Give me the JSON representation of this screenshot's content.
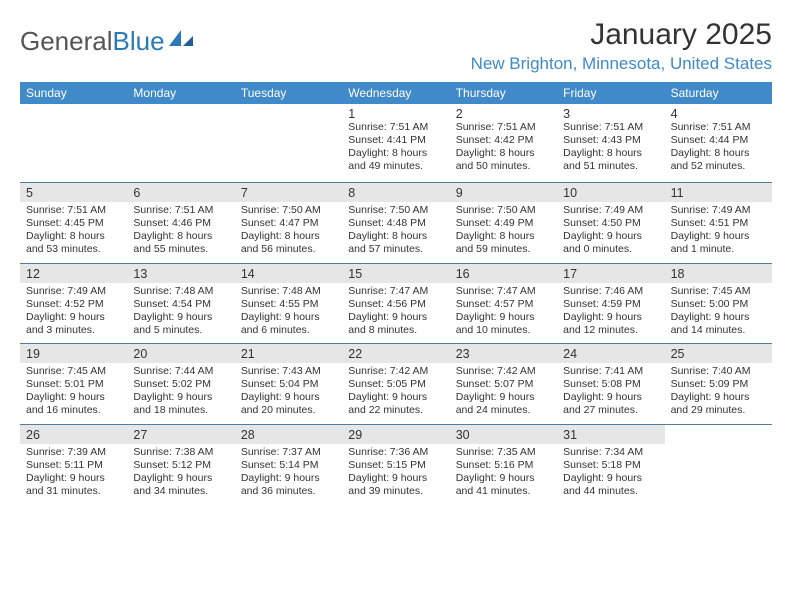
{
  "brand": {
    "word1": "General",
    "word2": "Blue"
  },
  "title": "January 2025",
  "location": "New Brighton, Minnesota, United States",
  "colors": {
    "header_bg": "#408aca",
    "header_text": "#ffffff",
    "shaded_bg": "#e6e6e6",
    "divider": "#4b7fa8",
    "location_color": "#408aca",
    "body_text": "#333333"
  },
  "dow": [
    "Sunday",
    "Monday",
    "Tuesday",
    "Wednesday",
    "Thursday",
    "Friday",
    "Saturday"
  ],
  "weeks": [
    [
      {},
      {},
      {},
      {
        "day": "1",
        "sunrise": "Sunrise: 7:51 AM",
        "sunset": "Sunset: 4:41 PM",
        "d1": "Daylight: 8 hours",
        "d2": "and 49 minutes."
      },
      {
        "day": "2",
        "sunrise": "Sunrise: 7:51 AM",
        "sunset": "Sunset: 4:42 PM",
        "d1": "Daylight: 8 hours",
        "d2": "and 50 minutes."
      },
      {
        "day": "3",
        "sunrise": "Sunrise: 7:51 AM",
        "sunset": "Sunset: 4:43 PM",
        "d1": "Daylight: 8 hours",
        "d2": "and 51 minutes."
      },
      {
        "day": "4",
        "sunrise": "Sunrise: 7:51 AM",
        "sunset": "Sunset: 4:44 PM",
        "d1": "Daylight: 8 hours",
        "d2": "and 52 minutes."
      }
    ],
    [
      {
        "day": "5",
        "sunrise": "Sunrise: 7:51 AM",
        "sunset": "Sunset: 4:45 PM",
        "d1": "Daylight: 8 hours",
        "d2": "and 53 minutes."
      },
      {
        "day": "6",
        "sunrise": "Sunrise: 7:51 AM",
        "sunset": "Sunset: 4:46 PM",
        "d1": "Daylight: 8 hours",
        "d2": "and 55 minutes."
      },
      {
        "day": "7",
        "sunrise": "Sunrise: 7:50 AM",
        "sunset": "Sunset: 4:47 PM",
        "d1": "Daylight: 8 hours",
        "d2": "and 56 minutes."
      },
      {
        "day": "8",
        "sunrise": "Sunrise: 7:50 AM",
        "sunset": "Sunset: 4:48 PM",
        "d1": "Daylight: 8 hours",
        "d2": "and 57 minutes."
      },
      {
        "day": "9",
        "sunrise": "Sunrise: 7:50 AM",
        "sunset": "Sunset: 4:49 PM",
        "d1": "Daylight: 8 hours",
        "d2": "and 59 minutes."
      },
      {
        "day": "10",
        "sunrise": "Sunrise: 7:49 AM",
        "sunset": "Sunset: 4:50 PM",
        "d1": "Daylight: 9 hours",
        "d2": "and 0 minutes."
      },
      {
        "day": "11",
        "sunrise": "Sunrise: 7:49 AM",
        "sunset": "Sunset: 4:51 PM",
        "d1": "Daylight: 9 hours",
        "d2": "and 1 minute."
      }
    ],
    [
      {
        "day": "12",
        "sunrise": "Sunrise: 7:49 AM",
        "sunset": "Sunset: 4:52 PM",
        "d1": "Daylight: 9 hours",
        "d2": "and 3 minutes."
      },
      {
        "day": "13",
        "sunrise": "Sunrise: 7:48 AM",
        "sunset": "Sunset: 4:54 PM",
        "d1": "Daylight: 9 hours",
        "d2": "and 5 minutes."
      },
      {
        "day": "14",
        "sunrise": "Sunrise: 7:48 AM",
        "sunset": "Sunset: 4:55 PM",
        "d1": "Daylight: 9 hours",
        "d2": "and 6 minutes."
      },
      {
        "day": "15",
        "sunrise": "Sunrise: 7:47 AM",
        "sunset": "Sunset: 4:56 PM",
        "d1": "Daylight: 9 hours",
        "d2": "and 8 minutes."
      },
      {
        "day": "16",
        "sunrise": "Sunrise: 7:47 AM",
        "sunset": "Sunset: 4:57 PM",
        "d1": "Daylight: 9 hours",
        "d2": "and 10 minutes."
      },
      {
        "day": "17",
        "sunrise": "Sunrise: 7:46 AM",
        "sunset": "Sunset: 4:59 PM",
        "d1": "Daylight: 9 hours",
        "d2": "and 12 minutes."
      },
      {
        "day": "18",
        "sunrise": "Sunrise: 7:45 AM",
        "sunset": "Sunset: 5:00 PM",
        "d1": "Daylight: 9 hours",
        "d2": "and 14 minutes."
      }
    ],
    [
      {
        "day": "19",
        "sunrise": "Sunrise: 7:45 AM",
        "sunset": "Sunset: 5:01 PM",
        "d1": "Daylight: 9 hours",
        "d2": "and 16 minutes."
      },
      {
        "day": "20",
        "sunrise": "Sunrise: 7:44 AM",
        "sunset": "Sunset: 5:02 PM",
        "d1": "Daylight: 9 hours",
        "d2": "and 18 minutes."
      },
      {
        "day": "21",
        "sunrise": "Sunrise: 7:43 AM",
        "sunset": "Sunset: 5:04 PM",
        "d1": "Daylight: 9 hours",
        "d2": "and 20 minutes."
      },
      {
        "day": "22",
        "sunrise": "Sunrise: 7:42 AM",
        "sunset": "Sunset: 5:05 PM",
        "d1": "Daylight: 9 hours",
        "d2": "and 22 minutes."
      },
      {
        "day": "23",
        "sunrise": "Sunrise: 7:42 AM",
        "sunset": "Sunset: 5:07 PM",
        "d1": "Daylight: 9 hours",
        "d2": "and 24 minutes."
      },
      {
        "day": "24",
        "sunrise": "Sunrise: 7:41 AM",
        "sunset": "Sunset: 5:08 PM",
        "d1": "Daylight: 9 hours",
        "d2": "and 27 minutes."
      },
      {
        "day": "25",
        "sunrise": "Sunrise: 7:40 AM",
        "sunset": "Sunset: 5:09 PM",
        "d1": "Daylight: 9 hours",
        "d2": "and 29 minutes."
      }
    ],
    [
      {
        "day": "26",
        "sunrise": "Sunrise: 7:39 AM",
        "sunset": "Sunset: 5:11 PM",
        "d1": "Daylight: 9 hours",
        "d2": "and 31 minutes."
      },
      {
        "day": "27",
        "sunrise": "Sunrise: 7:38 AM",
        "sunset": "Sunset: 5:12 PM",
        "d1": "Daylight: 9 hours",
        "d2": "and 34 minutes."
      },
      {
        "day": "28",
        "sunrise": "Sunrise: 7:37 AM",
        "sunset": "Sunset: 5:14 PM",
        "d1": "Daylight: 9 hours",
        "d2": "and 36 minutes."
      },
      {
        "day": "29",
        "sunrise": "Sunrise: 7:36 AM",
        "sunset": "Sunset: 5:15 PM",
        "d1": "Daylight: 9 hours",
        "d2": "and 39 minutes."
      },
      {
        "day": "30",
        "sunrise": "Sunrise: 7:35 AM",
        "sunset": "Sunset: 5:16 PM",
        "d1": "Daylight: 9 hours",
        "d2": "and 41 minutes."
      },
      {
        "day": "31",
        "sunrise": "Sunrise: 7:34 AM",
        "sunset": "Sunset: 5:18 PM",
        "d1": "Daylight: 9 hours",
        "d2": "and 44 minutes."
      },
      {}
    ]
  ]
}
